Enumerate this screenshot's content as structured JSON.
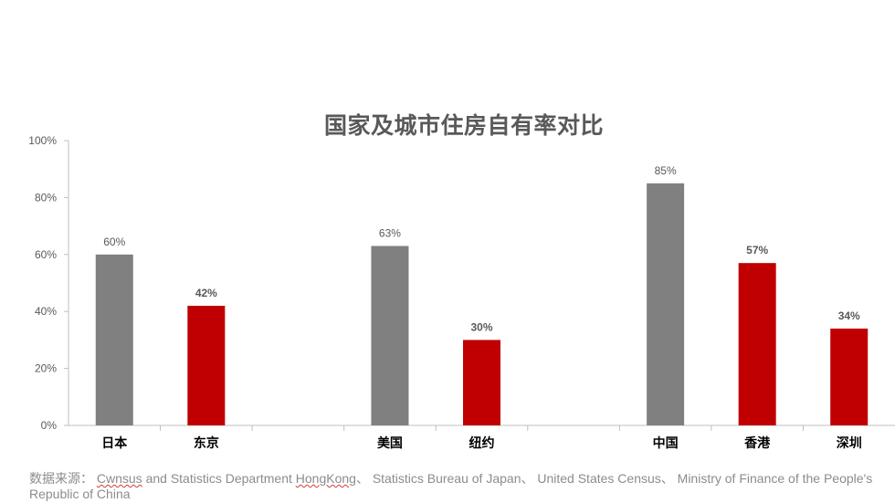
{
  "chart_data": {
    "type": "bar",
    "title": "国家及城市住房自有率对比",
    "xlabel": "",
    "ylabel": "",
    "ylim": [
      0,
      100
    ],
    "yticks": [
      "0%",
      "20%",
      "40%",
      "60%",
      "80%",
      "100%"
    ],
    "categories": [
      "日本",
      "东京",
      "美国",
      "纽约",
      "中国",
      "香港",
      "深圳"
    ],
    "groups": [
      [
        "日本",
        "东京"
      ],
      [
        "美国",
        "纽约"
      ],
      [
        "中国",
        "香港",
        "深圳"
      ]
    ],
    "values": [
      60,
      42,
      63,
      30,
      85,
      57,
      34
    ],
    "value_labels": [
      "60%",
      "42%",
      "63%",
      "30%",
      "85%",
      "57%",
      "34%"
    ],
    "bar_colors": [
      "#808080",
      "#c00000",
      "#808080",
      "#c00000",
      "#808080",
      "#c00000",
      "#c00000"
    ],
    "grid": false,
    "legend": "none"
  },
  "source": {
    "prefix": "数据来源：",
    "misspelled_1": "Cwnsus",
    "part_1": " and Statistics Department ",
    "misspelled_2": "HongKong",
    "part_2": "、 Statistics Bureau of Japan、 United States Census、 Ministry of Finance of the People's Republic of China"
  },
  "colors": {
    "gray_bar": "#808080",
    "red_bar": "#c00000",
    "axis": "#bfbfbf",
    "text": "#595959"
  }
}
